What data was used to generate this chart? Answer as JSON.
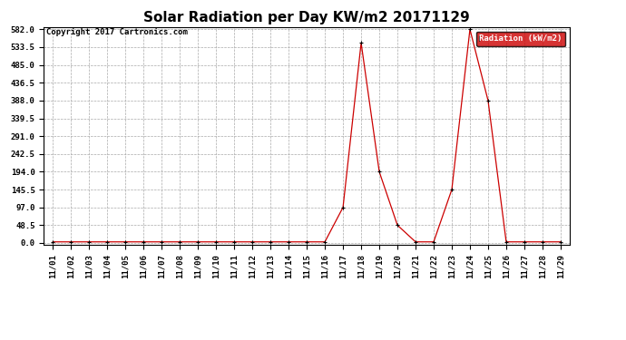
{
  "title": "Solar Radiation per Day KW/m2 20171129",
  "copyright": "Copyright 2017 Cartronics.com",
  "legend_label": "Radiation (kW/m2)",
  "dates": [
    "11/01",
    "11/02",
    "11/03",
    "11/04",
    "11/05",
    "11/06",
    "11/07",
    "11/08",
    "11/09",
    "11/10",
    "11/11",
    "11/12",
    "11/13",
    "11/14",
    "11/15",
    "11/16",
    "11/17",
    "11/18",
    "11/19",
    "11/20",
    "11/21",
    "11/22",
    "11/23",
    "11/24",
    "11/25",
    "11/26",
    "11/27",
    "11/28",
    "11/29"
  ],
  "values": [
    3.0,
    3.0,
    3.0,
    3.0,
    3.0,
    3.0,
    3.0,
    3.0,
    3.0,
    3.0,
    3.0,
    3.0,
    3.0,
    3.0,
    3.0,
    3.0,
    97.0,
    545.0,
    194.0,
    48.5,
    3.0,
    3.0,
    145.5,
    582.0,
    388.0,
    3.0,
    3.0,
    3.0,
    3.0
  ],
  "yticks": [
    0.0,
    48.5,
    97.0,
    145.5,
    194.0,
    242.5,
    291.0,
    339.5,
    388.0,
    436.5,
    485.0,
    533.5,
    582.0
  ],
  "ymax": 582.0,
  "line_color": "#cc0000",
  "marker_color": "#000000",
  "bg_color": "#ffffff",
  "grid_color": "#aaaaaa",
  "legend_bg": "#cc0000",
  "legend_text_color": "#ffffff",
  "title_fontsize": 11,
  "axis_fontsize": 6.5,
  "copyright_fontsize": 6.5
}
